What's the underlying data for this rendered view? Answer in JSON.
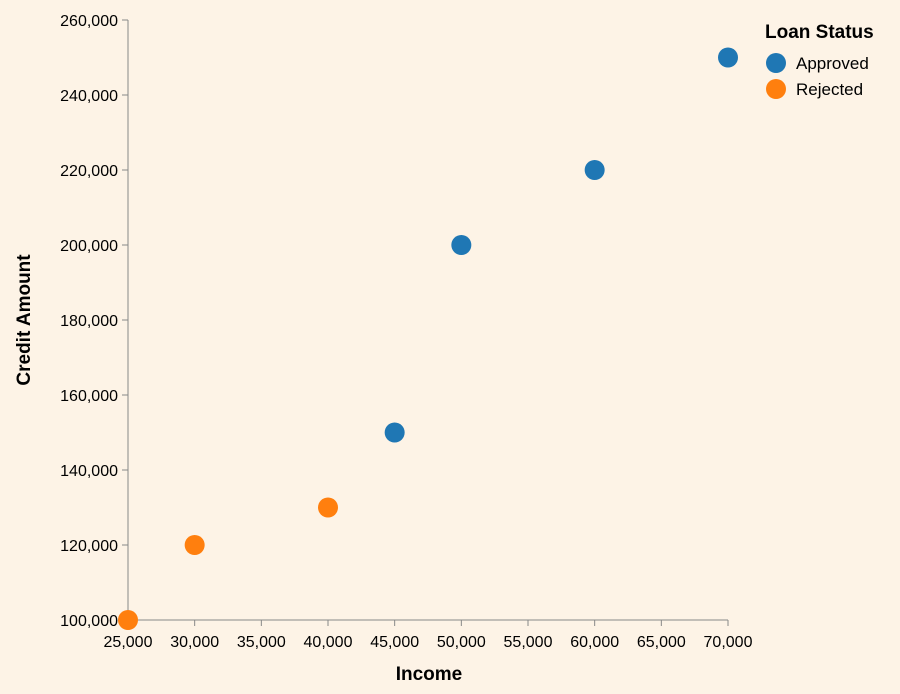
{
  "chart_data": {
    "type": "scatter",
    "xlabel": "Income",
    "ylabel": "Credit Amount",
    "xlim": [
      25000,
      70000
    ],
    "ylim": [
      100000,
      260000
    ],
    "x_ticks": [
      25000,
      30000,
      35000,
      40000,
      45000,
      50000,
      55000,
      60000,
      65000,
      70000
    ],
    "x_tick_labels": [
      "25,000",
      "30,000",
      "35,000",
      "40,000",
      "45,000",
      "50,000",
      "55,000",
      "60,000",
      "65,000",
      "70,000"
    ],
    "y_ticks": [
      100000,
      120000,
      140000,
      160000,
      180000,
      200000,
      220000,
      240000,
      260000
    ],
    "y_tick_labels": [
      "100,000",
      "120,000",
      "140,000",
      "160,000",
      "180,000",
      "200,000",
      "220,000",
      "240,000",
      "260,000"
    ],
    "grid": false,
    "legend": {
      "title": "Loan Status",
      "placement": "top-right"
    },
    "series": [
      {
        "name": "Approved",
        "color": "#1f77b4",
        "points": [
          {
            "x": 45000,
            "y": 150000
          },
          {
            "x": 50000,
            "y": 200000
          },
          {
            "x": 60000,
            "y": 220000
          },
          {
            "x": 70000,
            "y": 250000
          }
        ]
      },
      {
        "name": "Rejected",
        "color": "#ff7f0e",
        "points": [
          {
            "x": 25000,
            "y": 100000
          },
          {
            "x": 30000,
            "y": 120000
          },
          {
            "x": 40000,
            "y": 130000
          }
        ]
      }
    ]
  }
}
